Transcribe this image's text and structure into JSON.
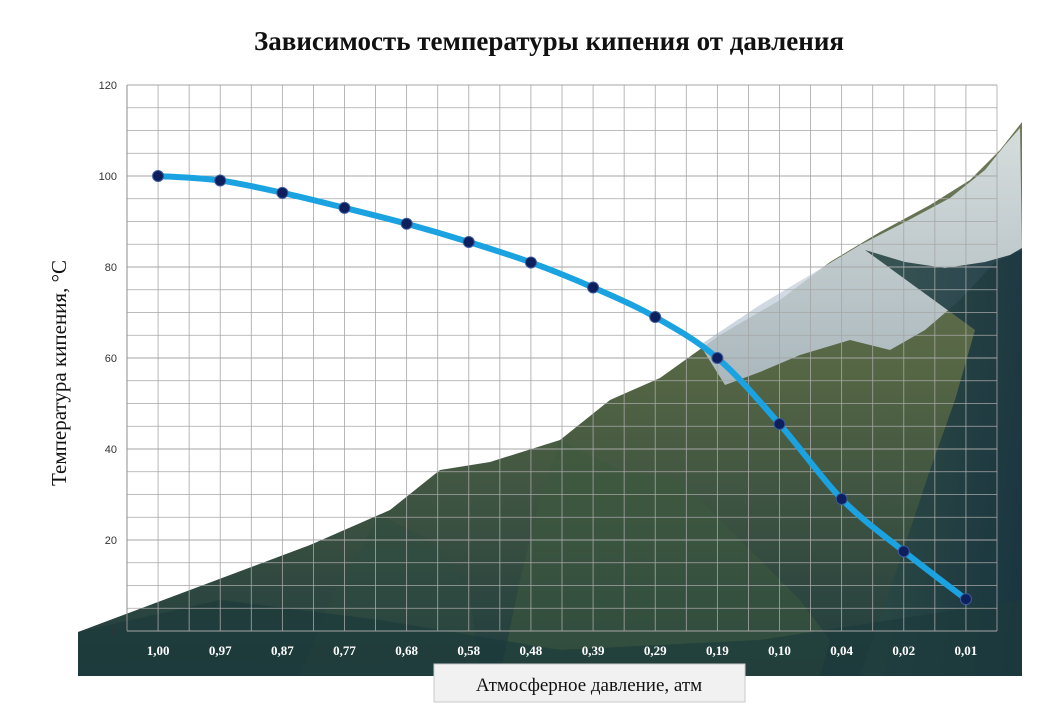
{
  "chart_data": {
    "type": "line",
    "title": "Зависимость температуры кипения от давления",
    "xlabel": "Атмосферное давление, атм",
    "ylabel": "Температура кипения, °С",
    "categories": [
      "1,00",
      "0,97",
      "0,87",
      "0,77",
      "0,68",
      "0,58",
      "0,48",
      "0,39",
      "0,29",
      "0,19",
      "0,10",
      "0,04",
      "0,02",
      "0,01"
    ],
    "series": [
      {
        "values": [
          100,
          99,
          96.3,
          93,
          89.5,
          85.5,
          81,
          75.5,
          69,
          60,
          45.5,
          29,
          17.5,
          7
        ]
      }
    ],
    "ylim": [
      0,
      120
    ],
    "yticks": [
      0,
      20,
      40,
      60,
      80,
      100,
      120
    ],
    "grid": true,
    "legend": "none",
    "colors": {
      "line": "#1aa3e0",
      "marker": "#0d1f5c",
      "grid": "#a6a6a6"
    },
    "background": "mountain-landscape"
  }
}
